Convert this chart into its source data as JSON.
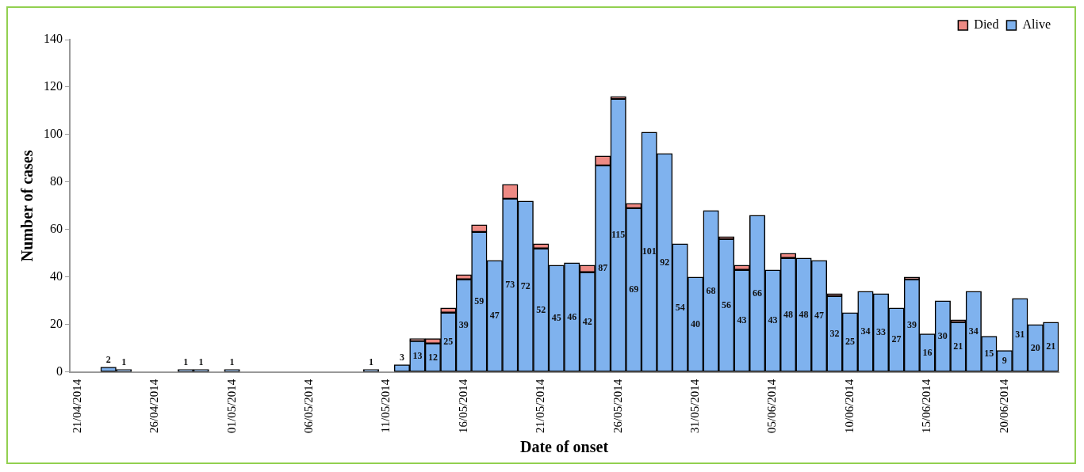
{
  "chart_data": {
    "type": "bar",
    "stacked": true,
    "xlabel": "Date of onset",
    "ylabel": "Number of cases",
    "categories": [
      "21/04/2014",
      null,
      null,
      null,
      null,
      "26/04/2014",
      null,
      null,
      null,
      null,
      "01/05/2014",
      null,
      null,
      null,
      null,
      "06/05/2014",
      null,
      null,
      null,
      null,
      "11/05/2014",
      null,
      null,
      null,
      null,
      "16/05/2014",
      null,
      null,
      null,
      null,
      "21/05/2014",
      null,
      null,
      null,
      null,
      "26/05/2014",
      null,
      null,
      null,
      null,
      "31/05/2014",
      null,
      null,
      null,
      null,
      "05/06/2014",
      null,
      null,
      null,
      null,
      "10/06/2014",
      null,
      null,
      null,
      null,
      "15/06/2014",
      null,
      null,
      null,
      null,
      "20/06/2014",
      null,
      null,
      null
    ],
    "series": [
      {
        "name": "Alive",
        "color": "#7fb2ee",
        "values": [
          null,
          null,
          2,
          1,
          null,
          null,
          null,
          1,
          1,
          null,
          1,
          null,
          null,
          null,
          null,
          null,
          null,
          null,
          null,
          1,
          null,
          3,
          13,
          12,
          25,
          39,
          59,
          47,
          73,
          72,
          52,
          45,
          46,
          42,
          87,
          115,
          69,
          101,
          92,
          54,
          40,
          68,
          56,
          43,
          66,
          43,
          48,
          48,
          47,
          32,
          25,
          34,
          33,
          27,
          39,
          16,
          30,
          21,
          34,
          15,
          9,
          31,
          20,
          21
        ],
        "value_labels": [
          null,
          null,
          "2",
          "1",
          null,
          null,
          null,
          "1",
          "1",
          null,
          "1",
          null,
          null,
          null,
          null,
          null,
          null,
          null,
          null,
          "1",
          null,
          "3",
          "13",
          "12",
          "25",
          "39",
          "59",
          "47",
          "73",
          "72",
          "52",
          "45",
          "46",
          "42",
          "87",
          "115",
          "69",
          "101",
          "92",
          "54",
          "40",
          "68",
          "56",
          "43",
          "66",
          "43",
          "48",
          "48",
          "47",
          "32",
          "25",
          "34",
          "33",
          "27",
          "39",
          "16",
          "30",
          "21",
          "34",
          "15",
          "9",
          "31",
          "20",
          "21"
        ]
      },
      {
        "name": "Died",
        "color": "#ee8a84",
        "values": [
          null,
          null,
          null,
          null,
          null,
          null,
          null,
          null,
          null,
          null,
          null,
          null,
          null,
          null,
          null,
          null,
          null,
          null,
          null,
          null,
          null,
          null,
          1,
          2,
          2,
          2,
          3,
          null,
          6,
          null,
          2,
          null,
          null,
          3,
          4,
          1,
          2,
          null,
          null,
          null,
          null,
          null,
          1,
          2,
          null,
          null,
          2,
          null,
          null,
          1,
          null,
          null,
          null,
          null,
          1,
          null,
          null,
          1,
          null,
          null,
          null,
          null,
          null,
          null
        ]
      }
    ],
    "ylim": [
      0,
      140
    ],
    "yticks": [
      0,
      20,
      40,
      60,
      80,
      100,
      120,
      140
    ],
    "grid": false,
    "legend": "top right"
  }
}
